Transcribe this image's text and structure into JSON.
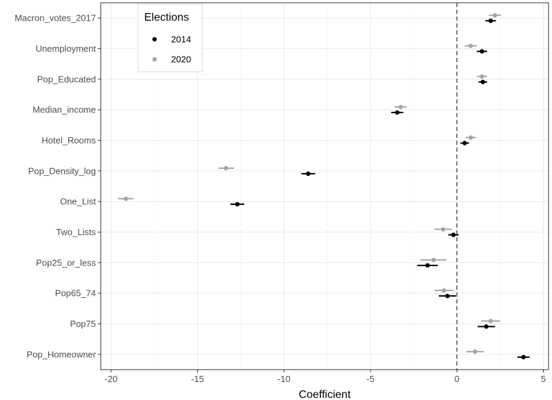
{
  "chart_data": {
    "type": "scatter",
    "subtype": "coefficient-plot",
    "xlabel": "Coefficient",
    "ylabel": "",
    "xlim": [
      -20.6,
      5.3
    ],
    "xticks": [
      -20,
      -15,
      -10,
      -5,
      0,
      5
    ],
    "xtick_labels": [
      "-20",
      "-15",
      "-10",
      "-5",
      "0",
      "5"
    ],
    "reference_line": 0,
    "grid": true,
    "legend": {
      "title": "Elections",
      "position": "top-left-inside"
    },
    "categories": [
      "Macron_votes_2017",
      "Unemployment",
      "Pop_Educated",
      "Median_income",
      "Hotel_Rooms",
      "Pop_Density_log",
      "One_List",
      "Two_Lists",
      "Pop25_or_less",
      "Pop65_74",
      "Pop75",
      "Pop_Homeowner"
    ],
    "series": [
      {
        "name": "2014",
        "color": "#000000",
        "values": [
          1.95,
          1.45,
          1.5,
          -3.45,
          0.45,
          -8.6,
          -12.7,
          -0.2,
          -1.7,
          -0.55,
          1.7,
          3.85
        ],
        "ci_low": [
          1.65,
          1.15,
          1.25,
          -3.8,
          0.2,
          -9.0,
          -13.1,
          -0.5,
          -2.3,
          -1.05,
          1.2,
          3.5
        ],
        "ci_high": [
          2.25,
          1.75,
          1.75,
          -3.1,
          0.7,
          -8.2,
          -12.3,
          0.1,
          -1.1,
          -0.05,
          2.2,
          4.2
        ]
      },
      {
        "name": "2020",
        "color": "#a6a6a6",
        "values": [
          2.2,
          0.8,
          1.45,
          -3.25,
          0.8,
          -13.35,
          -19.15,
          -0.8,
          -1.35,
          -0.75,
          1.95,
          1.05
        ],
        "ci_low": [
          1.85,
          0.45,
          1.15,
          -3.6,
          0.5,
          -13.8,
          -19.6,
          -1.3,
          -2.1,
          -1.3,
          1.4,
          0.55
        ],
        "ci_high": [
          2.55,
          1.15,
          1.75,
          -2.9,
          1.1,
          -12.9,
          -18.7,
          -0.3,
          -0.6,
          -0.2,
          2.5,
          1.55
        ]
      }
    ]
  }
}
